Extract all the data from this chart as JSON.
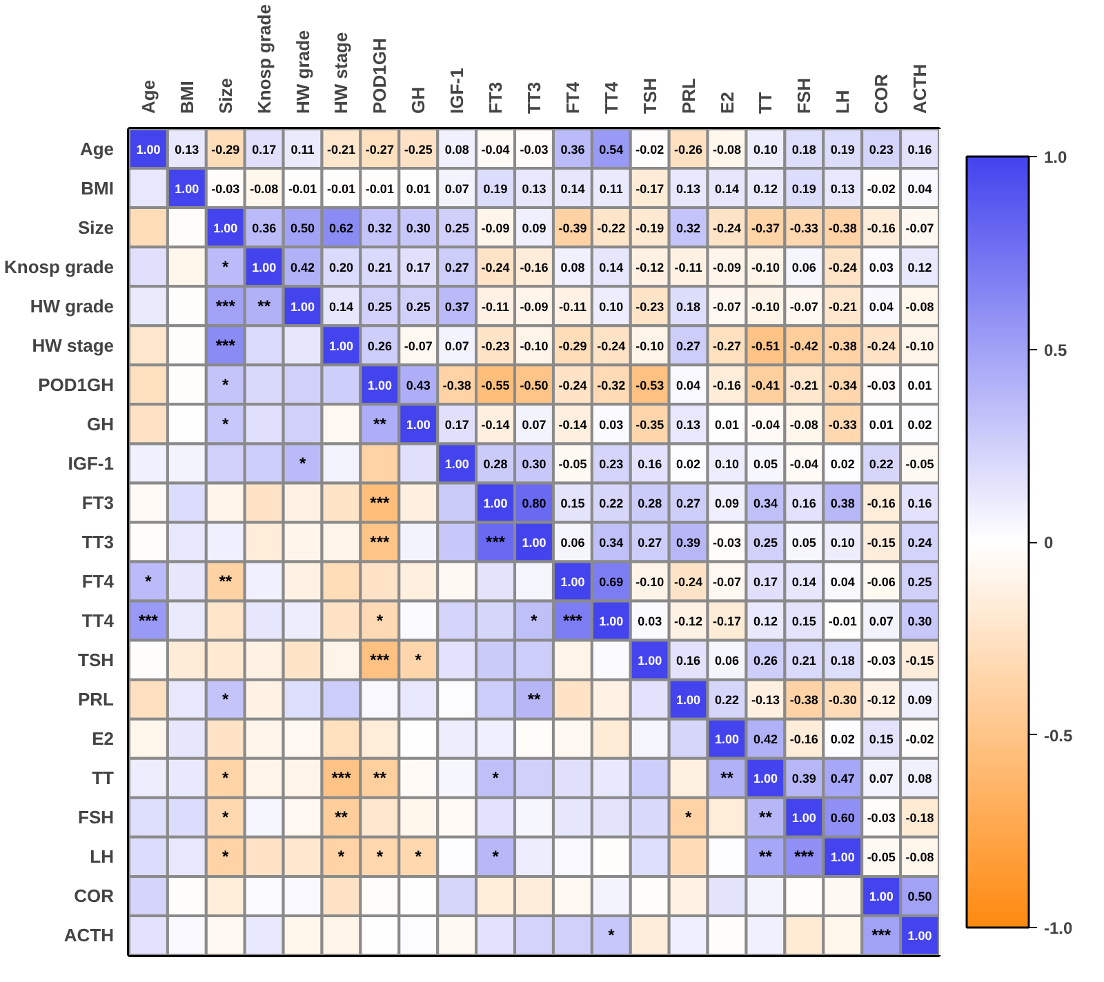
{
  "chart_data": {
    "type": "heatmap",
    "categories": [
      "Age",
      "BMI",
      "Size",
      "Knosp grade",
      "HW grade",
      "HW stage",
      "POD1GH",
      "GH",
      "IGF-1",
      "FT3",
      "TT3",
      "FT4",
      "TT4",
      "TSH",
      "PRL",
      "E2",
      "TT",
      "FSH",
      "LH",
      "COR",
      "ACTH"
    ],
    "y_categories": [
      "Age",
      "BMI",
      "Size",
      "Knosp grade",
      "HW grade",
      "HW stage",
      "POD1GH",
      "GH",
      "IGF-1",
      "FT3",
      "TT3",
      "FT4",
      "TT4",
      "TSH",
      "PRL",
      "E2",
      "TT",
      "FSH",
      "LH",
      "COR",
      "ACTH"
    ],
    "cells": [
      [
        1.0,
        0.13,
        -0.29,
        0.17,
        0.11,
        -0.21,
        -0.27,
        -0.25,
        0.08,
        -0.04,
        -0.03,
        0.36,
        0.54,
        -0.02,
        -0.26,
        -0.08,
        0.1,
        0.18,
        0.19,
        0.23,
        0.16
      ],
      [
        0.13,
        1.0,
        -0.03,
        -0.08,
        -0.01,
        -0.01,
        -0.01,
        0.01,
        0.07,
        0.19,
        0.13,
        0.14,
        0.11,
        -0.17,
        0.13,
        0.14,
        0.12,
        0.19,
        0.13,
        -0.02,
        0.04
      ],
      [
        -0.29,
        -0.03,
        1.0,
        0.36,
        0.5,
        0.62,
        0.32,
        0.3,
        0.25,
        -0.09,
        0.09,
        -0.39,
        -0.22,
        -0.19,
        0.32,
        -0.24,
        -0.37,
        -0.33,
        -0.38,
        -0.16,
        -0.07
      ],
      [
        0.17,
        -0.08,
        0.36,
        1.0,
        0.42,
        0.2,
        0.21,
        0.17,
        0.27,
        -0.24,
        -0.16,
        0.08,
        0.14,
        -0.12,
        -0.11,
        -0.09,
        -0.1,
        0.06,
        -0.24,
        0.03,
        0.12
      ],
      [
        0.11,
        -0.01,
        0.5,
        0.42,
        1.0,
        0.14,
        0.25,
        0.25,
        0.37,
        -0.11,
        -0.09,
        -0.11,
        0.1,
        -0.23,
        0.18,
        -0.07,
        -0.1,
        -0.07,
        -0.21,
        0.04,
        -0.08
      ],
      [
        -0.21,
        -0.01,
        0.62,
        0.2,
        0.14,
        1.0,
        0.26,
        -0.07,
        0.07,
        -0.23,
        -0.1,
        -0.29,
        -0.24,
        -0.1,
        0.27,
        -0.27,
        -0.51,
        -0.42,
        -0.38,
        -0.24,
        -0.1
      ],
      [
        -0.27,
        -0.01,
        0.32,
        0.21,
        0.25,
        0.26,
        1.0,
        0.43,
        -0.38,
        -0.55,
        -0.5,
        -0.24,
        -0.32,
        -0.53,
        0.04,
        -0.16,
        -0.41,
        -0.21,
        -0.34,
        -0.03,
        0.01
      ],
      [
        -0.25,
        0.01,
        0.3,
        0.17,
        0.25,
        -0.07,
        0.43,
        1.0,
        0.17,
        -0.14,
        0.07,
        -0.14,
        0.03,
        -0.35,
        0.13,
        0.01,
        -0.04,
        -0.08,
        -0.33,
        0.01,
        0.02
      ],
      [
        0.08,
        0.07,
        0.25,
        0.27,
        0.37,
        0.07,
        -0.38,
        0.17,
        1.0,
        0.28,
        0.3,
        -0.05,
        0.23,
        0.16,
        0.02,
        0.1,
        0.05,
        -0.04,
        0.02,
        0.22,
        -0.05
      ],
      [
        -0.04,
        0.19,
        -0.09,
        -0.24,
        -0.11,
        -0.23,
        -0.55,
        -0.14,
        0.28,
        1.0,
        0.8,
        0.15,
        0.22,
        0.28,
        0.27,
        0.09,
        0.34,
        0.16,
        0.38,
        -0.16,
        0.16
      ],
      [
        -0.03,
        0.13,
        0.09,
        -0.16,
        -0.09,
        -0.1,
        -0.5,
        0.07,
        0.3,
        0.8,
        1.0,
        0.06,
        0.34,
        0.27,
        0.39,
        -0.03,
        0.25,
        0.05,
        0.1,
        -0.15,
        0.24
      ],
      [
        0.36,
        0.14,
        -0.39,
        0.08,
        -0.11,
        -0.29,
        -0.24,
        -0.14,
        -0.05,
        0.15,
        0.06,
        1.0,
        0.69,
        -0.1,
        -0.24,
        -0.07,
        0.17,
        0.14,
        0.04,
        -0.06,
        0.25
      ],
      [
        0.54,
        0.11,
        -0.22,
        0.14,
        0.1,
        -0.24,
        -0.32,
        0.03,
        0.23,
        0.22,
        0.34,
        0.69,
        1.0,
        0.03,
        -0.12,
        -0.17,
        0.12,
        0.15,
        -0.01,
        0.07,
        0.3
      ],
      [
        -0.02,
        -0.17,
        -0.19,
        -0.12,
        -0.23,
        -0.1,
        -0.53,
        -0.35,
        0.16,
        0.28,
        0.27,
        -0.1,
        0.03,
        1.0,
        0.16,
        0.06,
        0.26,
        0.21,
        0.18,
        -0.03,
        -0.15
      ],
      [
        -0.26,
        0.13,
        0.32,
        -0.11,
        0.18,
        0.27,
        0.04,
        0.13,
        0.02,
        0.27,
        0.39,
        -0.24,
        -0.12,
        0.16,
        1.0,
        0.22,
        -0.13,
        -0.38,
        -0.3,
        -0.12,
        0.09
      ],
      [
        -0.08,
        0.14,
        -0.24,
        -0.09,
        -0.07,
        -0.27,
        -0.16,
        0.01,
        0.1,
        0.09,
        -0.03,
        -0.07,
        -0.17,
        0.06,
        0.22,
        1.0,
        0.42,
        -0.16,
        0.02,
        0.15,
        -0.02
      ],
      [
        0.1,
        0.12,
        -0.37,
        -0.1,
        -0.1,
        -0.51,
        -0.41,
        -0.04,
        0.05,
        0.34,
        0.25,
        0.17,
        0.12,
        0.26,
        -0.13,
        0.42,
        1.0,
        0.39,
        0.47,
        0.07,
        0.08
      ],
      [
        0.18,
        0.19,
        -0.33,
        0.06,
        -0.07,
        -0.42,
        -0.21,
        -0.08,
        -0.04,
        0.16,
        0.05,
        0.14,
        0.15,
        0.21,
        -0.38,
        -0.16,
        0.39,
        1.0,
        0.6,
        -0.03,
        -0.18
      ],
      [
        0.19,
        0.13,
        -0.38,
        -0.24,
        -0.21,
        -0.38,
        -0.34,
        -0.33,
        0.02,
        0.38,
        0.1,
        0.04,
        -0.01,
        0.18,
        -0.3,
        0.02,
        0.47,
        0.6,
        1.0,
        -0.05,
        -0.08
      ],
      [
        0.23,
        -0.02,
        -0.16,
        0.03,
        0.04,
        -0.24,
        -0.03,
        0.01,
        0.22,
        -0.16,
        -0.15,
        -0.06,
        0.07,
        -0.03,
        -0.12,
        0.15,
        0.07,
        -0.03,
        -0.05,
        1.0,
        0.5
      ],
      [
        0.16,
        0.04,
        -0.07,
        0.12,
        -0.08,
        -0.1,
        0.01,
        0.02,
        -0.05,
        0.16,
        0.24,
        0.25,
        0.3,
        -0.15,
        0.09,
        -0.02,
        0.08,
        -0.18,
        -0.08,
        0.5,
        1.0
      ]
    ],
    "cell_labels": [
      [
        "1.00",
        "0.13",
        "-0.29",
        "0.17",
        "0.11",
        "-0.21",
        "-0.27",
        "-0.25",
        "0.08",
        "-0.04",
        "-0.03",
        "0.36",
        "0.54",
        "-0.02",
        "-0.26",
        "-0.08",
        "0.10",
        "0.18",
        "0.19",
        "0.23",
        "0.16"
      ],
      [
        null,
        "1.00",
        "-0.03",
        "-0.08",
        "-0.01",
        "-0.01",
        "-0.01",
        "0.01",
        "0.07",
        "0.19",
        "0.13",
        "0.14",
        "0.11",
        "-0.17",
        "0.13",
        "0.14",
        "0.12",
        "0.19",
        "0.13",
        "-0.02",
        "0.04"
      ],
      [
        null,
        null,
        "1.00",
        "0.36",
        "0.50",
        "0.62",
        "0.32",
        "0.30",
        "0.25",
        "-0.09",
        "0.09",
        "-0.39",
        "-0.22",
        "-0.19",
        "0.32",
        "-0.24",
        "-0.37",
        "-0.33",
        "-0.38",
        "-0.16",
        "-0.07"
      ],
      [
        null,
        null,
        "*",
        "1.00",
        "0.42",
        "0.20",
        "0.21",
        "0.17",
        "0.27",
        "-0.24",
        "-0.16",
        "0.08",
        "0.14",
        "-0.12",
        "-0.11",
        "-0.09",
        "-0.10",
        "0.06",
        "-0.24",
        "0.03",
        "0.12"
      ],
      [
        null,
        null,
        "***",
        "**",
        "1.00",
        "0.14",
        "0.25",
        "0.25",
        "0.37",
        "-0.11",
        "-0.09",
        "-0.11",
        "0.10",
        "-0.23",
        "0.18",
        "-0.07",
        "-0.10",
        "-0.07",
        "-0.21",
        "0.04",
        "-0.08"
      ],
      [
        null,
        null,
        "***",
        null,
        null,
        "1.00",
        "0.26",
        "-0.07",
        "0.07",
        "-0.23",
        "-0.10",
        "-0.29",
        "-0.24",
        "-0.10",
        "0.27",
        "-0.27",
        "-0.51",
        "-0.42",
        "-0.38",
        "-0.24",
        "-0.10"
      ],
      [
        null,
        null,
        "*",
        null,
        null,
        null,
        "1.00",
        "0.43",
        "-0.38",
        "-0.55",
        "-0.50",
        "-0.24",
        "-0.32",
        "-0.53",
        "0.04",
        "-0.16",
        "-0.41",
        "-0.21",
        "-0.34",
        "-0.03",
        "0.01"
      ],
      [
        null,
        null,
        "*",
        null,
        null,
        null,
        "**",
        "1.00",
        "0.17",
        "-0.14",
        "0.07",
        "-0.14",
        "0.03",
        "-0.35",
        "0.13",
        "0.01",
        "-0.04",
        "-0.08",
        "-0.33",
        "0.01",
        "0.02"
      ],
      [
        null,
        null,
        null,
        null,
        "*",
        null,
        null,
        null,
        "1.00",
        "0.28",
        "0.30",
        "-0.05",
        "0.23",
        "0.16",
        "0.02",
        "0.10",
        "0.05",
        "-0.04",
        "0.02",
        "0.22",
        "-0.05"
      ],
      [
        null,
        null,
        null,
        null,
        null,
        null,
        "***",
        null,
        null,
        "1.00",
        "0.80",
        "0.15",
        "0.22",
        "0.28",
        "0.27",
        "0.09",
        "0.34",
        "0.16",
        "0.38",
        "-0.16",
        "0.16"
      ],
      [
        null,
        null,
        null,
        null,
        null,
        null,
        "***",
        null,
        null,
        "***",
        "1.00",
        "0.06",
        "0.34",
        "0.27",
        "0.39",
        "-0.03",
        "0.25",
        "0.05",
        "0.10",
        "-0.15",
        "0.24"
      ],
      [
        "*",
        null,
        "**",
        null,
        null,
        null,
        null,
        null,
        null,
        null,
        null,
        "1.00",
        "0.69",
        "-0.10",
        "-0.24",
        "-0.07",
        "0.17",
        "0.14",
        "0.04",
        "-0.06",
        "0.25"
      ],
      [
        "***",
        null,
        null,
        null,
        null,
        null,
        "*",
        null,
        null,
        null,
        "*",
        "***",
        "1.00",
        "0.03",
        "-0.12",
        "-0.17",
        "0.12",
        "0.15",
        "-0.01",
        "0.07",
        "0.30"
      ],
      [
        null,
        null,
        null,
        null,
        null,
        null,
        "***",
        "*",
        null,
        null,
        null,
        null,
        null,
        "1.00",
        "0.16",
        "0.06",
        "0.26",
        "0.21",
        "0.18",
        "-0.03",
        "-0.15"
      ],
      [
        null,
        null,
        "*",
        null,
        null,
        null,
        null,
        null,
        null,
        null,
        "**",
        null,
        null,
        null,
        "1.00",
        "0.22",
        "-0.13",
        "-0.38",
        "-0.30",
        "-0.12",
        "0.09"
      ],
      [
        null,
        null,
        null,
        null,
        null,
        null,
        null,
        null,
        null,
        null,
        null,
        null,
        null,
        null,
        null,
        "1.00",
        "0.42",
        "-0.16",
        "0.02",
        "0.15",
        "-0.02"
      ],
      [
        null,
        null,
        "*",
        null,
        null,
        "***",
        "**",
        null,
        null,
        "*",
        null,
        null,
        null,
        null,
        null,
        "**",
        "1.00",
        "0.39",
        "0.47",
        "0.07",
        "0.08"
      ],
      [
        null,
        null,
        "*",
        null,
        null,
        "**",
        null,
        null,
        null,
        null,
        null,
        null,
        null,
        null,
        "*",
        null,
        "**",
        "1.00",
        "0.60",
        "-0.03",
        "-0.18"
      ],
      [
        null,
        null,
        "*",
        null,
        null,
        "*",
        "*",
        "*",
        null,
        "*",
        null,
        null,
        null,
        null,
        null,
        null,
        "**",
        "***",
        "1.00",
        "-0.05",
        "-0.08"
      ],
      [
        null,
        null,
        null,
        null,
        null,
        null,
        null,
        null,
        null,
        null,
        null,
        null,
        null,
        null,
        null,
        null,
        null,
        null,
        null,
        "1.00",
        "0.50"
      ],
      [
        null,
        null,
        null,
        null,
        null,
        null,
        null,
        null,
        null,
        null,
        null,
        null,
        "*",
        null,
        null,
        null,
        null,
        null,
        null,
        "***",
        "1.00"
      ]
    ],
    "clim": [
      -1.0,
      1.0
    ],
    "cticks": [
      {
        "value": -1.0,
        "label": "-1.0"
      },
      {
        "value": -0.5,
        "label": "-0.5"
      },
      0,
      {
        "value": 0.5,
        "label": "0.5"
      },
      {
        "value": 1.0,
        "label": "1.0"
      }
    ]
  }
}
